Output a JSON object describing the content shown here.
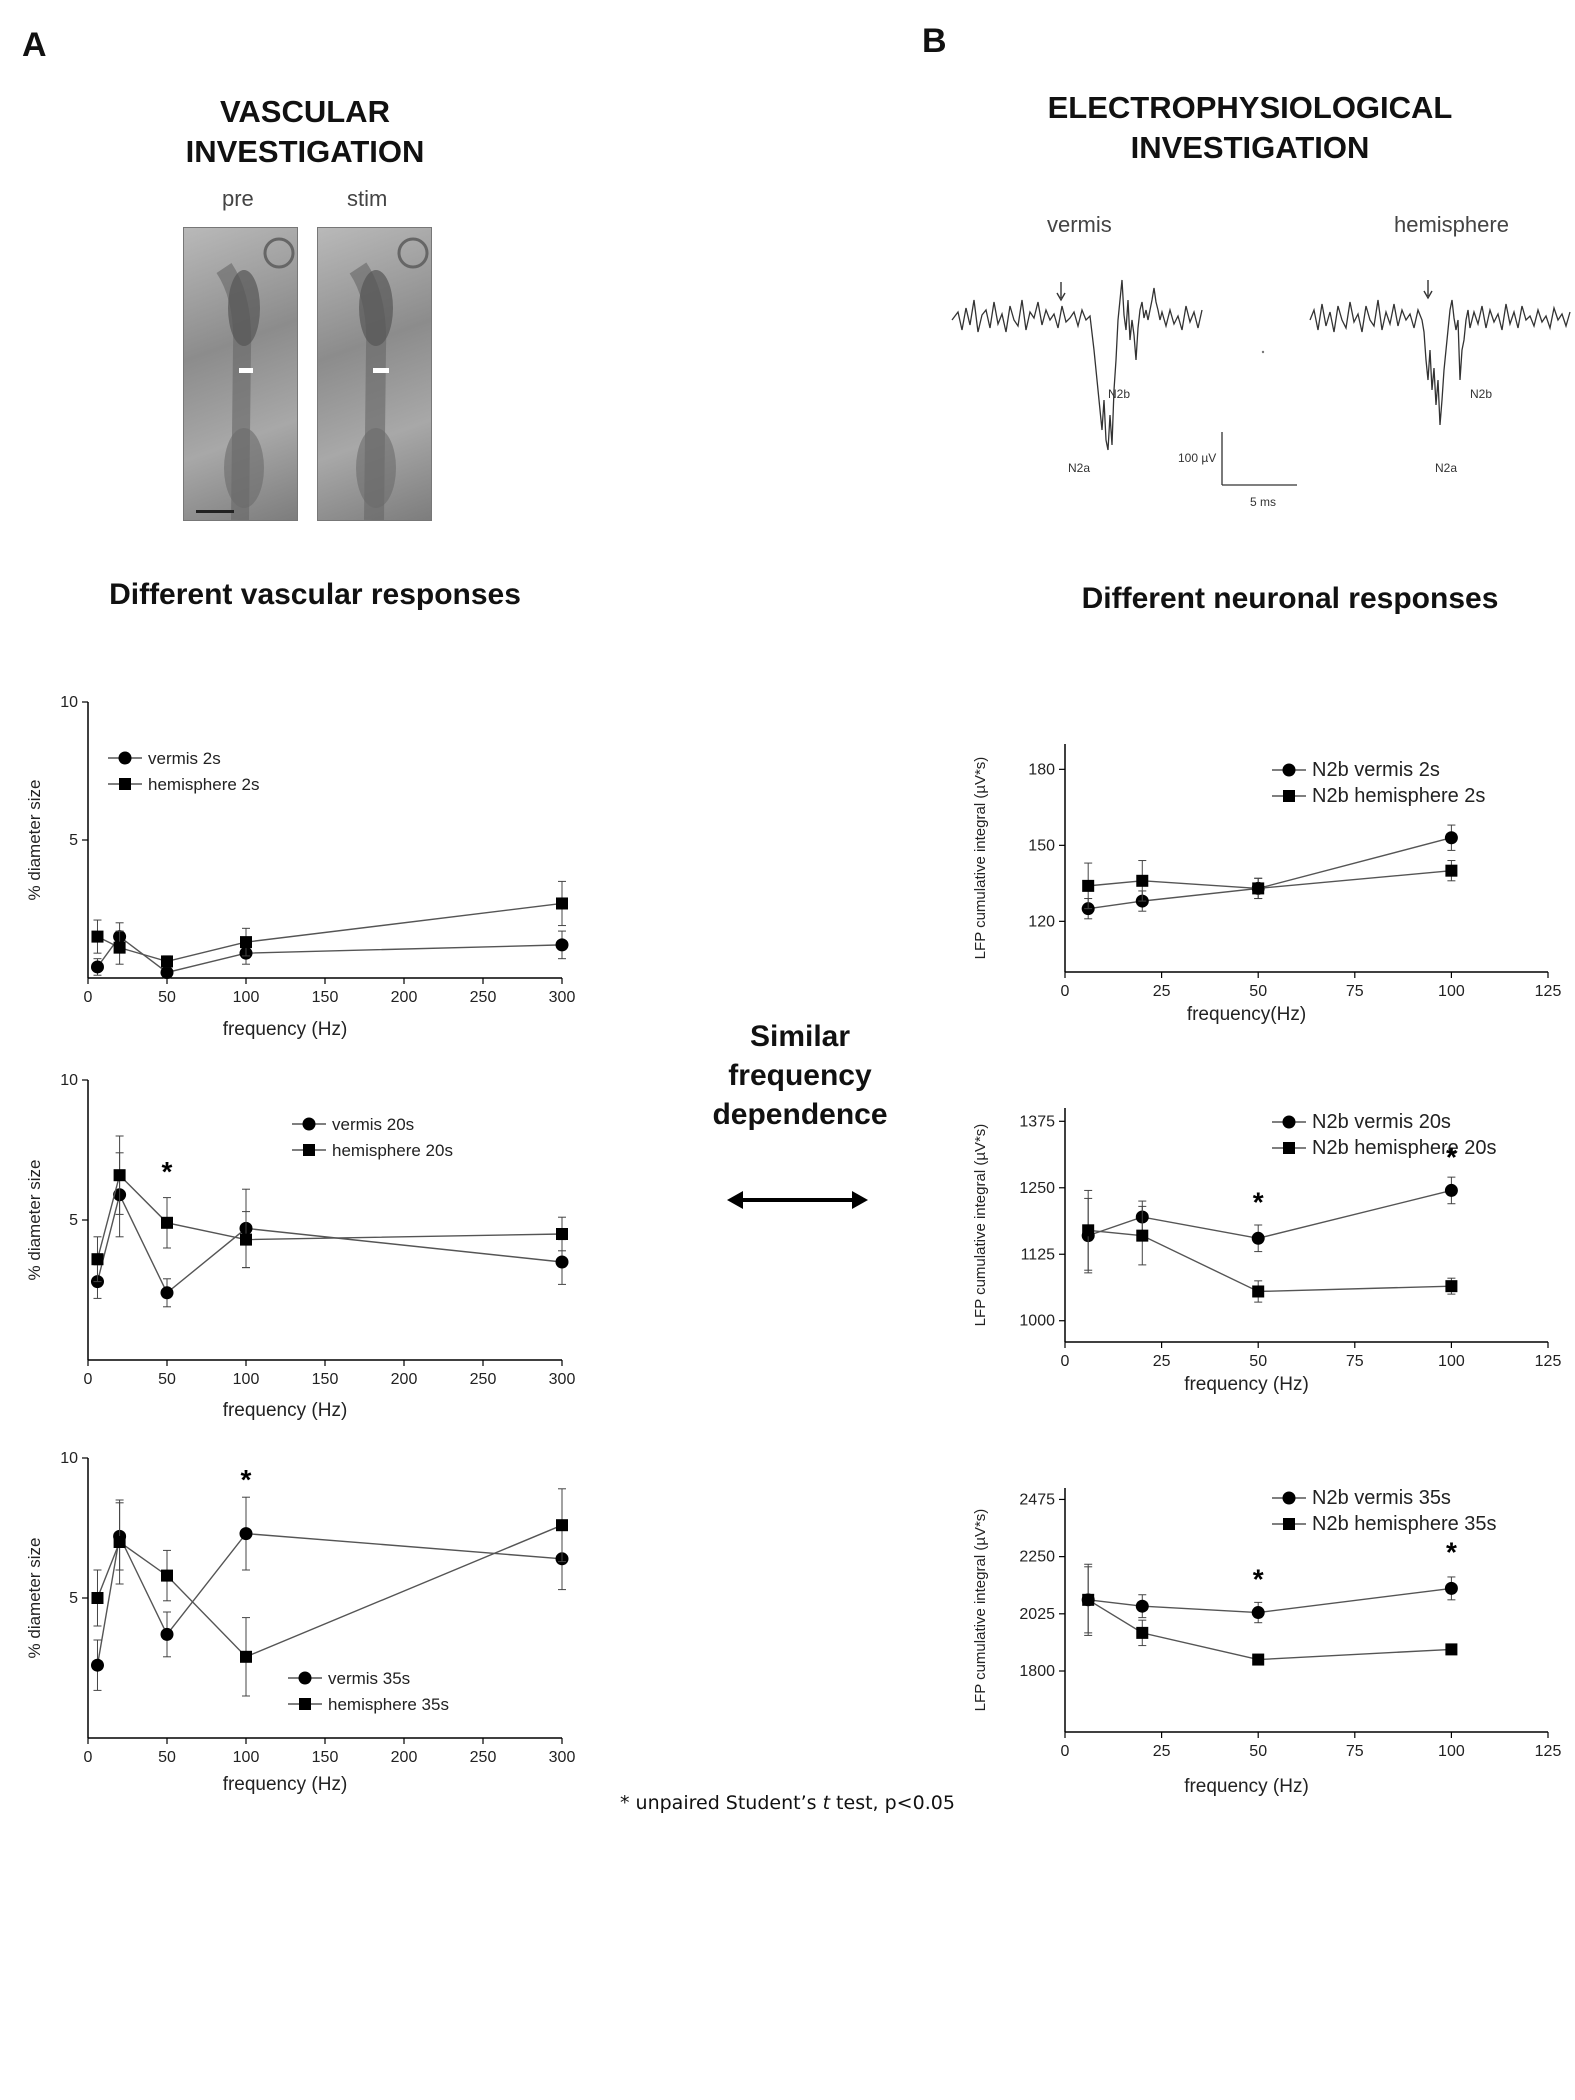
{
  "panels": {
    "a_letter": "A",
    "b_letter": "B"
  },
  "panel_a": {
    "title_line1": "VASCULAR",
    "title_line2": "INVESTIGATION",
    "image_pre_label": "pre",
    "image_stim_label": "stim",
    "section_title": "Different vascular responses"
  },
  "panel_b": {
    "title_line1": "ELECTROPHYSIOLOGICAL",
    "title_line2": "INVESTIGATION",
    "trace_vermis_label": "vermis",
    "trace_hemisphere_label": "hemisphere",
    "n2a_label": "N2a",
    "n2b_label": "N2b",
    "scale_voltage": "100 µV",
    "scale_time": "5 ms",
    "section_title": "Different neuronal responses"
  },
  "center": {
    "line1": "Similar",
    "line2": "frequency",
    "line3": "dependence"
  },
  "footnote": {
    "prefix": "* unpaired Student’s ",
    "t": "t",
    "suffix": " test, p<0.05"
  },
  "colors": {
    "series_line": "#555555",
    "marker": "#000000",
    "axis": "#000000"
  },
  "chart_data": [
    {
      "type": "line",
      "xlabel": "frequency (Hz)",
      "ylabel": "% diameter size",
      "xlim": [
        0,
        300
      ],
      "ylim": [
        0,
        10
      ],
      "xticks": [
        0,
        50,
        100,
        150,
        200,
        250,
        300
      ],
      "yticks": [
        5,
        10
      ],
      "series": [
        {
          "name": "vermis 2s",
          "marker": "circle",
          "x": [
            6,
            20,
            50,
            100,
            300
          ],
          "y": [
            0.4,
            1.5,
            0.2,
            0.9,
            1.2
          ],
          "err": [
            0.3,
            0.5,
            0.2,
            0.4,
            0.5
          ]
        },
        {
          "name": "hemisphere 2s",
          "marker": "square",
          "x": [
            6,
            20,
            50,
            100,
            300
          ],
          "y": [
            1.5,
            1.1,
            0.6,
            1.3,
            2.7
          ],
          "err": [
            0.6,
            0.6,
            0.2,
            0.5,
            0.8
          ]
        }
      ],
      "annotations": []
    },
    {
      "type": "line",
      "xlabel": "frequency (Hz)",
      "ylabel": "% diameter size",
      "xlim": [
        0,
        300
      ],
      "ylim": [
        0,
        10
      ],
      "xticks": [
        0,
        50,
        100,
        150,
        200,
        250,
        300
      ],
      "yticks": [
        5,
        10
      ],
      "series": [
        {
          "name": "vermis 20s",
          "marker": "circle",
          "x": [
            6,
            20,
            50,
            100,
            300
          ],
          "y": [
            2.8,
            5.9,
            2.4,
            4.7,
            3.5
          ],
          "err": [
            0.6,
            1.5,
            0.5,
            1.4,
            0.8
          ]
        },
        {
          "name": "hemisphere 20s",
          "marker": "square",
          "x": [
            6,
            20,
            50,
            100,
            300
          ],
          "y": [
            3.6,
            6.6,
            4.9,
            4.3,
            4.5
          ],
          "err": [
            0.8,
            1.4,
            0.9,
            1.0,
            0.6
          ]
        }
      ],
      "annotations": [
        {
          "x": 50,
          "y": 6.4,
          "text": "*"
        }
      ]
    },
    {
      "type": "line",
      "xlabel": "frequency (Hz)",
      "ylabel": "% diameter size",
      "xlim": [
        0,
        300
      ],
      "ylim": [
        0,
        10
      ],
      "xticks": [
        0,
        50,
        100,
        150,
        200,
        250,
        300
      ],
      "yticks": [
        5,
        10
      ],
      "series": [
        {
          "name": "vermis 35s",
          "marker": "circle",
          "x": [
            6,
            20,
            50,
            100,
            300
          ],
          "y": [
            2.6,
            7.2,
            3.7,
            7.3,
            6.4
          ],
          "err": [
            0.9,
            1.2,
            0.8,
            1.3,
            1.1
          ]
        },
        {
          "name": "hemisphere 35s",
          "marker": "square",
          "x": [
            6,
            20,
            50,
            100,
            300
          ],
          "y": [
            5.0,
            7.0,
            5.8,
            2.9,
            7.6
          ],
          "err": [
            1.0,
            1.5,
            0.9,
            1.4,
            1.3
          ]
        }
      ],
      "annotations": [
        {
          "x": 100,
          "y": 8.9,
          "text": "*"
        }
      ]
    },
    {
      "type": "line",
      "xlabel": "frequency(Hz)",
      "ylabel": "LFP cumulative integral  (µV*s)",
      "xlim": [
        0,
        125
      ],
      "ylim": [
        100,
        190
      ],
      "xticks": [
        0,
        25,
        50,
        75,
        100,
        125
      ],
      "yticks": [
        120,
        150,
        180
      ],
      "series": [
        {
          "name": "N2b vermis 2s",
          "marker": "circle",
          "x": [
            6,
            20,
            50,
            100
          ],
          "y": [
            125,
            128,
            133,
            153
          ],
          "err": [
            4,
            4,
            4,
            5
          ]
        },
        {
          "name": "N2b hemisphere 2s",
          "marker": "square",
          "x": [
            6,
            20,
            50,
            100
          ],
          "y": [
            134,
            136,
            133,
            140
          ],
          "err": [
            9,
            8,
            4,
            4
          ]
        }
      ],
      "annotations": []
    },
    {
      "type": "line",
      "xlabel": "frequency (Hz)",
      "ylabel": "LFP cumulative integral  (µV*s)",
      "xlim": [
        0,
        125
      ],
      "ylim": [
        960,
        1400
      ],
      "xticks": [
        0,
        25,
        50,
        75,
        100,
        125
      ],
      "yticks": [
        1000,
        1125,
        1250,
        1375
      ],
      "series": [
        {
          "name": "N2b vermis 20s",
          "marker": "circle",
          "x": [
            6,
            20,
            50,
            100
          ],
          "y": [
            1160,
            1195,
            1155,
            1245
          ],
          "err": [
            70,
            30,
            25,
            25
          ]
        },
        {
          "name": "N2b hemisphere 20s",
          "marker": "square",
          "x": [
            6,
            20,
            50,
            100
          ],
          "y": [
            1170,
            1160,
            1055,
            1065
          ],
          "err": [
            75,
            55,
            20,
            15
          ]
        }
      ],
      "annotations": [
        {
          "x": 50,
          "y": 1205,
          "text": "*"
        },
        {
          "x": 100,
          "y": 1290,
          "text": "*"
        }
      ]
    },
    {
      "type": "line",
      "xlabel": "frequency (Hz)",
      "ylabel": "LFP cumulative integral  (µV*s)",
      "xlim": [
        0,
        125
      ],
      "ylim": [
        1560,
        2520
      ],
      "xticks": [
        0,
        25,
        50,
        75,
        100,
        125
      ],
      "yticks": [
        1800,
        2025,
        2250,
        2475
      ],
      "series": [
        {
          "name": "N2b vermis 35s",
          "marker": "circle",
          "x": [
            6,
            20,
            50,
            100
          ],
          "y": [
            2080,
            2055,
            2030,
            2125
          ],
          "err": [
            140,
            45,
            40,
            45
          ]
        },
        {
          "name": "N2b hemisphere 35s",
          "marker": "square",
          "x": [
            6,
            20,
            50,
            100
          ],
          "y": [
            2080,
            1950,
            1845,
            1885
          ],
          "err": [
            130,
            50,
            20,
            15
          ]
        }
      ],
      "annotations": [
        {
          "x": 50,
          "y": 2125,
          "text": "*"
        },
        {
          "x": 100,
          "y": 2230,
          "text": "*"
        }
      ]
    }
  ]
}
